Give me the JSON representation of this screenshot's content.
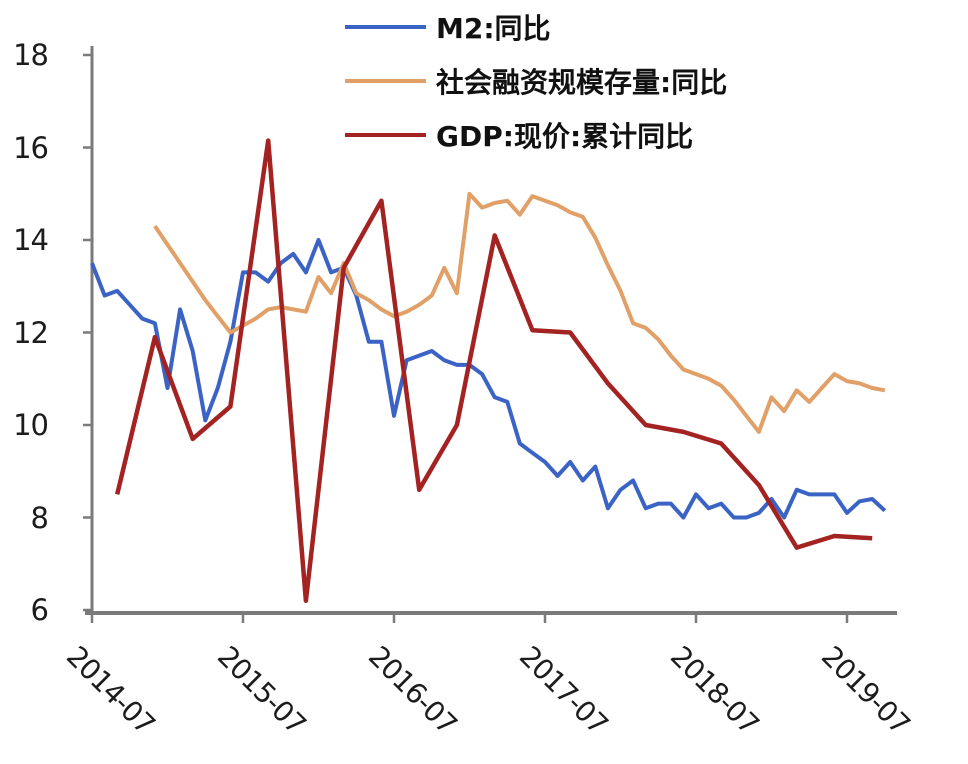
{
  "chart_data": {
    "type": "line",
    "title": "",
    "grid": false,
    "legend_position": "top-center",
    "x_axis": {
      "start_month": "2014-07",
      "tick_labels": [
        "2014-07",
        "2015-07",
        "2016-07",
        "2017-07",
        "2018-07",
        "2019-07"
      ],
      "tick_month_offsets": [
        0,
        12,
        24,
        36,
        48,
        60
      ]
    },
    "y_axis": {
      "min": 6,
      "max": 18,
      "ticks": [
        6,
        8,
        10,
        12,
        14,
        16,
        18
      ]
    },
    "series": [
      {
        "name": "M2:同比",
        "slug": "m2",
        "color": "#3b63c6",
        "start_month": "2014-07",
        "start_offset": 0,
        "step_months": 1,
        "values": [
          13.5,
          12.8,
          12.9,
          12.6,
          12.3,
          12.2,
          10.8,
          12.5,
          11.6,
          10.1,
          10.8,
          11.8,
          13.3,
          13.3,
          13.1,
          13.5,
          13.7,
          13.3,
          14.0,
          13.3,
          13.4,
          12.8,
          11.8,
          11.8,
          10.2,
          11.4,
          11.5,
          11.6,
          11.4,
          11.3,
          11.3,
          11.1,
          10.6,
          10.5,
          9.6,
          9.4,
          9.2,
          8.9,
          9.2,
          8.8,
          9.1,
          8.2,
          8.6,
          8.8,
          8.2,
          8.3,
          8.3,
          8.0,
          8.5,
          8.2,
          8.3,
          8.0,
          8.0,
          8.1,
          8.4,
          8.0,
          8.6,
          8.5,
          8.5,
          8.5,
          8.1,
          8.35,
          8.4,
          8.15
        ]
      },
      {
        "name": "社会融资规模存量:同比",
        "slug": "tsf",
        "color": "#e0a067",
        "start_month": "2014-12",
        "start_offset": 5,
        "step_months": 1,
        "values": [
          14.3,
          13.9,
          13.5,
          13.1,
          12.7,
          12.35,
          12.0,
          12.15,
          12.3,
          12.5,
          12.55,
          12.5,
          12.45,
          13.2,
          12.85,
          13.5,
          12.85,
          12.7,
          12.5,
          12.35,
          12.45,
          12.6,
          12.8,
          13.4,
          12.85,
          15.0,
          14.7,
          14.8,
          14.85,
          14.55,
          14.95,
          14.85,
          14.75,
          14.6,
          14.5,
          14.05,
          13.45,
          12.9,
          12.2,
          12.1,
          11.85,
          11.5,
          11.2,
          11.1,
          11.0,
          10.85,
          10.55,
          10.2,
          9.85,
          10.6,
          10.3,
          10.75,
          10.5,
          10.8,
          11.1,
          10.95,
          10.9,
          10.8,
          10.75
        ]
      },
      {
        "name": "GDP:现价:累计同比",
        "slug": "gdp",
        "color": "#a32322",
        "start_month": "2014-09",
        "start_offset": 2,
        "step_months": 3,
        "values": [
          8.5,
          11.9,
          9.7,
          10.4,
          16.15,
          6.2,
          13.4,
          14.85,
          8.6,
          10.0,
          14.1,
          12.05,
          12.0,
          10.9,
          10.0,
          9.85,
          9.6,
          8.7,
          7.35,
          7.6,
          7.55
        ]
      }
    ]
  },
  "style": {
    "axis_color": "#7a7a7a",
    "tick_text_color": "#1c1c1c",
    "background": "#ffffff"
  }
}
